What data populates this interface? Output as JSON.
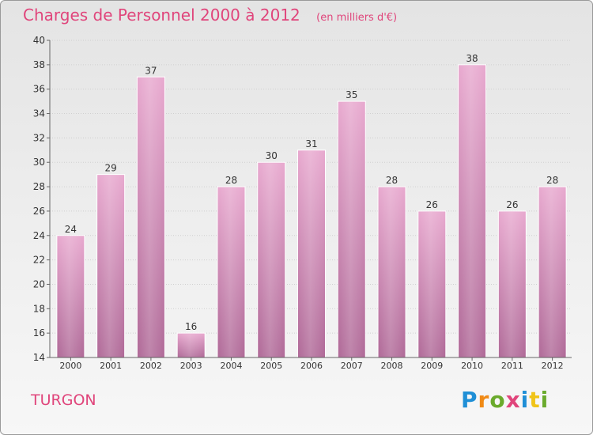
{
  "header": {
    "title": "Charges de Personnel 2000 à 2012",
    "subtitle": "(en milliers d'€)"
  },
  "footer": {
    "commune": "TURGON",
    "logo": [
      "P",
      "r",
      "o",
      "x",
      "i",
      "t",
      "i"
    ]
  },
  "colors": {
    "accent": "#e0457b",
    "bar_top": "#e8a9cf",
    "bar_bottom": "#b06a98"
  },
  "chart_data": {
    "type": "bar",
    "title": "Charges de Personnel 2000 à 2012",
    "subtitle": "(en milliers d'€)",
    "categories": [
      "2000",
      "2001",
      "2002",
      "2003",
      "2004",
      "2005",
      "2006",
      "2007",
      "2008",
      "2009",
      "2010",
      "2011",
      "2012"
    ],
    "values": [
      24,
      29,
      37,
      16,
      28,
      30,
      31,
      35,
      28,
      26,
      38,
      26,
      28
    ],
    "ylim": [
      14,
      40
    ],
    "yticks": [
      14,
      16,
      18,
      20,
      22,
      24,
      26,
      28,
      30,
      32,
      34,
      36,
      38,
      40
    ],
    "grid": true
  }
}
